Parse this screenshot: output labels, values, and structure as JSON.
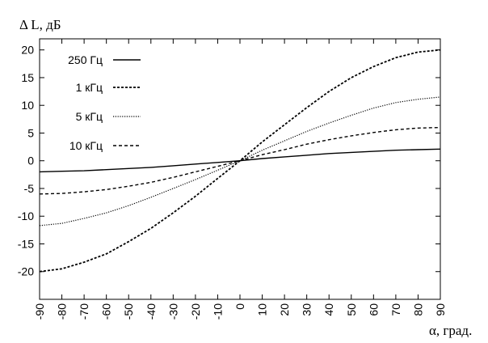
{
  "chart_data": {
    "type": "line",
    "title": "",
    "ylabel": "Δ L, дБ",
    "xlabel": "α, град.",
    "xlim": [
      -90,
      90
    ],
    "ylim": [
      -25,
      22
    ],
    "x_ticks": [
      -90,
      -80,
      -70,
      -60,
      -50,
      -40,
      -30,
      -20,
      -10,
      0,
      10,
      20,
      30,
      40,
      50,
      60,
      70,
      80,
      90
    ],
    "y_ticks": [
      20,
      15,
      10,
      5,
      0,
      -5,
      -10,
      -15,
      -20
    ],
    "grid": false,
    "legend_position": "top-left",
    "x": [
      -90,
      -80,
      -70,
      -60,
      -50,
      -40,
      -30,
      -20,
      -10,
      0,
      10,
      20,
      30,
      40,
      50,
      60,
      70,
      80,
      90
    ],
    "series": [
      {
        "name": "250 Гц",
        "style": "solid",
        "values": [
          -2.0,
          -1.9,
          -1.8,
          -1.6,
          -1.4,
          -1.2,
          -0.9,
          -0.6,
          -0.3,
          0.0,
          0.4,
          0.7,
          1.0,
          1.3,
          1.5,
          1.7,
          1.9,
          2.0,
          2.1
        ]
      },
      {
        "name": "1 кГц",
        "style": "dashed",
        "values": [
          -20.0,
          -19.5,
          -18.3,
          -16.8,
          -14.6,
          -12.2,
          -9.4,
          -6.4,
          -3.2,
          0.0,
          3.4,
          6.5,
          9.6,
          12.5,
          15.0,
          17.0,
          18.6,
          19.6,
          20.0
        ]
      },
      {
        "name": "5 кГц",
        "style": "dotted",
        "values": [
          -11.7,
          -11.3,
          -10.4,
          -9.4,
          -8.1,
          -6.6,
          -5.0,
          -3.4,
          -1.7,
          0.0,
          1.9,
          3.6,
          5.3,
          6.8,
          8.2,
          9.5,
          10.5,
          11.1,
          11.5
        ]
      },
      {
        "name": "10 кГц",
        "style": "dashed",
        "values": [
          -6.0,
          -5.9,
          -5.6,
          -5.2,
          -4.6,
          -3.9,
          -3.0,
          -2.0,
          -1.0,
          0.0,
          1.1,
          2.0,
          3.0,
          3.8,
          4.5,
          5.1,
          5.6,
          5.9,
          6.0
        ]
      }
    ]
  }
}
